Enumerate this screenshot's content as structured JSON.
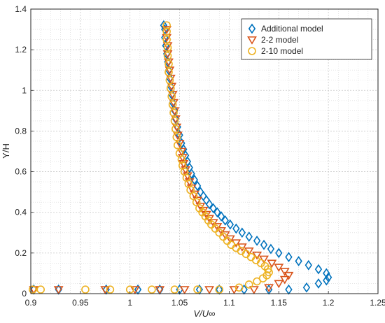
{
  "chart_data": {
    "type": "scatter",
    "title": "",
    "xlabel": "V/U∞",
    "ylabel": "Y/H",
    "xlim": [
      0.9,
      1.25
    ],
    "ylim": [
      0,
      1.4
    ],
    "xticks": [
      0.9,
      0.95,
      1,
      1.05,
      1.1,
      1.15,
      1.2,
      1.25
    ],
    "xtick_labels": [
      "0.9",
      "0.95",
      "1",
      "1.05",
      "1.1",
      "1.15",
      "1.2",
      "1.25"
    ],
    "yticks": [
      0,
      0.2,
      0.4,
      0.6,
      0.8,
      1,
      1.2,
      1.4
    ],
    "ytick_labels": [
      "0",
      "0.2",
      "0.4",
      "0.6",
      "0.8",
      "1",
      "1.2",
      "1.4"
    ],
    "grid": true,
    "minor_grid": true,
    "legend_position": "top-right",
    "series": [
      {
        "name": "Additional model",
        "marker": "diamond",
        "color": "#0072BD",
        "points": [
          [
            0.903,
            0.02
          ],
          [
            0.928,
            0.02
          ],
          [
            0.976,
            0.02
          ],
          [
            1.008,
            0.02
          ],
          [
            1.03,
            0.02
          ],
          [
            1.05,
            0.02
          ],
          [
            1.07,
            0.02
          ],
          [
            1.09,
            0.02
          ],
          [
            1.115,
            0.02
          ],
          [
            1.14,
            0.02
          ],
          [
            1.16,
            0.02
          ],
          [
            1.178,
            0.03
          ],
          [
            1.19,
            0.05
          ],
          [
            1.198,
            0.065
          ],
          [
            1.2,
            0.08
          ],
          [
            1.198,
            0.1
          ],
          [
            1.19,
            0.12
          ],
          [
            1.18,
            0.14
          ],
          [
            1.17,
            0.16
          ],
          [
            1.16,
            0.18
          ],
          [
            1.15,
            0.2
          ],
          [
            1.142,
            0.22
          ],
          [
            1.135,
            0.24
          ],
          [
            1.128,
            0.26
          ],
          [
            1.12,
            0.28
          ],
          [
            1.113,
            0.3
          ],
          [
            1.107,
            0.32
          ],
          [
            1.101,
            0.34
          ],
          [
            1.096,
            0.36
          ],
          [
            1.092,
            0.38
          ],
          [
            1.088,
            0.4
          ],
          [
            1.084,
            0.42
          ],
          [
            1.08,
            0.44
          ],
          [
            1.077,
            0.46
          ],
          [
            1.074,
            0.48
          ],
          [
            1.071,
            0.5
          ],
          [
            1.068,
            0.53
          ],
          [
            1.065,
            0.56
          ],
          [
            1.062,
            0.59
          ],
          [
            1.06,
            0.62
          ],
          [
            1.058,
            0.65
          ],
          [
            1.056,
            0.68
          ],
          [
            1.054,
            0.71
          ],
          [
            1.052,
            0.74
          ],
          [
            1.05,
            0.78
          ],
          [
            1.048,
            0.82
          ],
          [
            1.046,
            0.86
          ],
          [
            1.045,
            0.9
          ],
          [
            1.043,
            0.94
          ],
          [
            1.042,
            0.98
          ],
          [
            1.041,
            1.02
          ],
          [
            1.04,
            1.06
          ],
          [
            1.039,
            1.1
          ],
          [
            1.038,
            1.14
          ],
          [
            1.037,
            1.18
          ],
          [
            1.036,
            1.22
          ],
          [
            1.035,
            1.26
          ],
          [
            1.035,
            1.3
          ],
          [
            1.034,
            1.32
          ]
        ]
      },
      {
        "name": "2-2 model",
        "marker": "triangle-down",
        "color": "#D95319",
        "points": [
          [
            0.903,
            0.02
          ],
          [
            0.928,
            0.02
          ],
          [
            0.975,
            0.02
          ],
          [
            1.005,
            0.02
          ],
          [
            1.03,
            0.02
          ],
          [
            1.055,
            0.02
          ],
          [
            1.08,
            0.02
          ],
          [
            1.105,
            0.02
          ],
          [
            1.125,
            0.02
          ],
          [
            1.14,
            0.03
          ],
          [
            1.15,
            0.05
          ],
          [
            1.156,
            0.07
          ],
          [
            1.16,
            0.09
          ],
          [
            1.156,
            0.11
          ],
          [
            1.15,
            0.13
          ],
          [
            1.143,
            0.15
          ],
          [
            1.135,
            0.17
          ],
          [
            1.128,
            0.19
          ],
          [
            1.12,
            0.21
          ],
          [
            1.113,
            0.23
          ],
          [
            1.107,
            0.25
          ],
          [
            1.101,
            0.27
          ],
          [
            1.096,
            0.29
          ],
          [
            1.092,
            0.31
          ],
          [
            1.088,
            0.33
          ],
          [
            1.084,
            0.35
          ],
          [
            1.08,
            0.37
          ],
          [
            1.077,
            0.39
          ],
          [
            1.074,
            0.41
          ],
          [
            1.071,
            0.43
          ],
          [
            1.068,
            0.46
          ],
          [
            1.065,
            0.49
          ],
          [
            1.062,
            0.52
          ],
          [
            1.06,
            0.55
          ],
          [
            1.058,
            0.58
          ],
          [
            1.056,
            0.61
          ],
          [
            1.054,
            0.64
          ],
          [
            1.053,
            0.67
          ],
          [
            1.052,
            0.7
          ],
          [
            1.05,
            0.74
          ],
          [
            1.048,
            0.78
          ],
          [
            1.047,
            0.82
          ],
          [
            1.046,
            0.86
          ],
          [
            1.045,
            0.9
          ],
          [
            1.044,
            0.94
          ],
          [
            1.043,
            0.98
          ],
          [
            1.042,
            1.02
          ],
          [
            1.041,
            1.06
          ],
          [
            1.04,
            1.1
          ],
          [
            1.039,
            1.14
          ],
          [
            1.038,
            1.18
          ],
          [
            1.038,
            1.22
          ],
          [
            1.037,
            1.26
          ],
          [
            1.037,
            1.3
          ]
        ]
      },
      {
        "name": "2-10 model",
        "marker": "circle",
        "color": "#EDB120",
        "points": [
          [
            0.902,
            0.02
          ],
          [
            0.91,
            0.02
          ],
          [
            0.955,
            0.02
          ],
          [
            0.98,
            0.02
          ],
          [
            1.0,
            0.02
          ],
          [
            1.022,
            0.02
          ],
          [
            1.045,
            0.02
          ],
          [
            1.068,
            0.02
          ],
          [
            1.09,
            0.02
          ],
          [
            1.11,
            0.03
          ],
          [
            1.12,
            0.045
          ],
          [
            1.128,
            0.06
          ],
          [
            1.134,
            0.075
          ],
          [
            1.138,
            0.09
          ],
          [
            1.14,
            0.105
          ],
          [
            1.139,
            0.12
          ],
          [
            1.136,
            0.135
          ],
          [
            1.132,
            0.15
          ],
          [
            1.127,
            0.165
          ],
          [
            1.122,
            0.18
          ],
          [
            1.117,
            0.195
          ],
          [
            1.112,
            0.21
          ],
          [
            1.107,
            0.225
          ],
          [
            1.102,
            0.24
          ],
          [
            1.098,
            0.26
          ],
          [
            1.094,
            0.28
          ],
          [
            1.09,
            0.3
          ],
          [
            1.086,
            0.32
          ],
          [
            1.082,
            0.34
          ],
          [
            1.079,
            0.36
          ],
          [
            1.076,
            0.38
          ],
          [
            1.073,
            0.4
          ],
          [
            1.07,
            0.42
          ],
          [
            1.067,
            0.45
          ],
          [
            1.064,
            0.48
          ],
          [
            1.061,
            0.51
          ],
          [
            1.059,
            0.54
          ],
          [
            1.057,
            0.57
          ],
          [
            1.055,
            0.6
          ],
          [
            1.053,
            0.63
          ],
          [
            1.052,
            0.66
          ],
          [
            1.05,
            0.69
          ],
          [
            1.048,
            0.73
          ],
          [
            1.047,
            0.77
          ],
          [
            1.046,
            0.81
          ],
          [
            1.045,
            0.85
          ],
          [
            1.044,
            0.89
          ],
          [
            1.043,
            0.93
          ],
          [
            1.042,
            0.97
          ],
          [
            1.041,
            1.01
          ],
          [
            1.04,
            1.05
          ],
          [
            1.039,
            1.09
          ],
          [
            1.039,
            1.13
          ],
          [
            1.038,
            1.17
          ],
          [
            1.038,
            1.21
          ],
          [
            1.037,
            1.25
          ],
          [
            1.037,
            1.29
          ],
          [
            1.037,
            1.32
          ]
        ]
      }
    ]
  }
}
